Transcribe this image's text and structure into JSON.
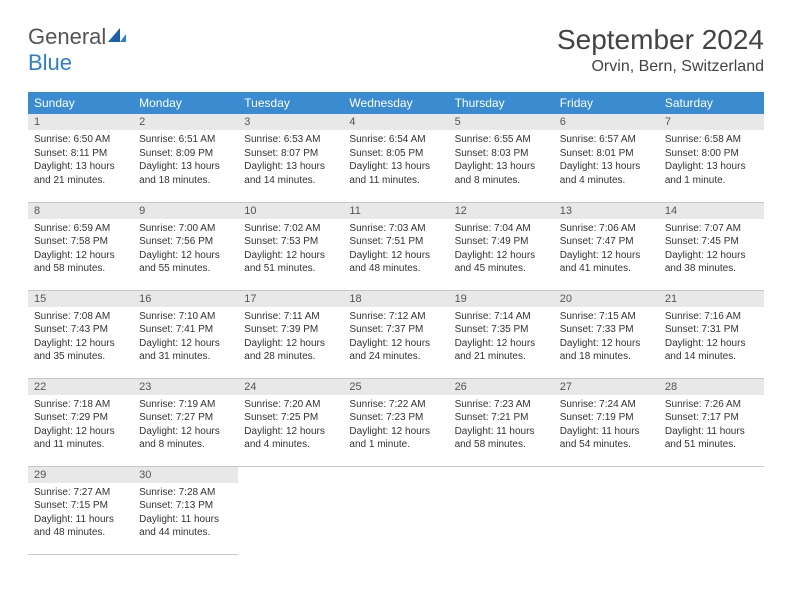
{
  "logo": {
    "text_general": "General",
    "text_blue": "Blue"
  },
  "header": {
    "month_title": "September 2024",
    "location": "Orvin, Bern, Switzerland"
  },
  "colors": {
    "header_bg": "#3a8bd0",
    "header_fg": "#ffffff",
    "daynum_bg": "#e8e8e8",
    "text": "#333333",
    "logo_blue": "#2f7ecb",
    "border": "#c8c8c8"
  },
  "weekdays": [
    "Sunday",
    "Monday",
    "Tuesday",
    "Wednesday",
    "Thursday",
    "Friday",
    "Saturday"
  ],
  "days": [
    {
      "n": "1",
      "sunrise": "Sunrise: 6:50 AM",
      "sunset": "Sunset: 8:11 PM",
      "daylight": "Daylight: 13 hours and 21 minutes."
    },
    {
      "n": "2",
      "sunrise": "Sunrise: 6:51 AM",
      "sunset": "Sunset: 8:09 PM",
      "daylight": "Daylight: 13 hours and 18 minutes."
    },
    {
      "n": "3",
      "sunrise": "Sunrise: 6:53 AM",
      "sunset": "Sunset: 8:07 PM",
      "daylight": "Daylight: 13 hours and 14 minutes."
    },
    {
      "n": "4",
      "sunrise": "Sunrise: 6:54 AM",
      "sunset": "Sunset: 8:05 PM",
      "daylight": "Daylight: 13 hours and 11 minutes."
    },
    {
      "n": "5",
      "sunrise": "Sunrise: 6:55 AM",
      "sunset": "Sunset: 8:03 PM",
      "daylight": "Daylight: 13 hours and 8 minutes."
    },
    {
      "n": "6",
      "sunrise": "Sunrise: 6:57 AM",
      "sunset": "Sunset: 8:01 PM",
      "daylight": "Daylight: 13 hours and 4 minutes."
    },
    {
      "n": "7",
      "sunrise": "Sunrise: 6:58 AM",
      "sunset": "Sunset: 8:00 PM",
      "daylight": "Daylight: 13 hours and 1 minute."
    },
    {
      "n": "8",
      "sunrise": "Sunrise: 6:59 AM",
      "sunset": "Sunset: 7:58 PM",
      "daylight": "Daylight: 12 hours and 58 minutes."
    },
    {
      "n": "9",
      "sunrise": "Sunrise: 7:00 AM",
      "sunset": "Sunset: 7:56 PM",
      "daylight": "Daylight: 12 hours and 55 minutes."
    },
    {
      "n": "10",
      "sunrise": "Sunrise: 7:02 AM",
      "sunset": "Sunset: 7:53 PM",
      "daylight": "Daylight: 12 hours and 51 minutes."
    },
    {
      "n": "11",
      "sunrise": "Sunrise: 7:03 AM",
      "sunset": "Sunset: 7:51 PM",
      "daylight": "Daylight: 12 hours and 48 minutes."
    },
    {
      "n": "12",
      "sunrise": "Sunrise: 7:04 AM",
      "sunset": "Sunset: 7:49 PM",
      "daylight": "Daylight: 12 hours and 45 minutes."
    },
    {
      "n": "13",
      "sunrise": "Sunrise: 7:06 AM",
      "sunset": "Sunset: 7:47 PM",
      "daylight": "Daylight: 12 hours and 41 minutes."
    },
    {
      "n": "14",
      "sunrise": "Sunrise: 7:07 AM",
      "sunset": "Sunset: 7:45 PM",
      "daylight": "Daylight: 12 hours and 38 minutes."
    },
    {
      "n": "15",
      "sunrise": "Sunrise: 7:08 AM",
      "sunset": "Sunset: 7:43 PM",
      "daylight": "Daylight: 12 hours and 35 minutes."
    },
    {
      "n": "16",
      "sunrise": "Sunrise: 7:10 AM",
      "sunset": "Sunset: 7:41 PM",
      "daylight": "Daylight: 12 hours and 31 minutes."
    },
    {
      "n": "17",
      "sunrise": "Sunrise: 7:11 AM",
      "sunset": "Sunset: 7:39 PM",
      "daylight": "Daylight: 12 hours and 28 minutes."
    },
    {
      "n": "18",
      "sunrise": "Sunrise: 7:12 AM",
      "sunset": "Sunset: 7:37 PM",
      "daylight": "Daylight: 12 hours and 24 minutes."
    },
    {
      "n": "19",
      "sunrise": "Sunrise: 7:14 AM",
      "sunset": "Sunset: 7:35 PM",
      "daylight": "Daylight: 12 hours and 21 minutes."
    },
    {
      "n": "20",
      "sunrise": "Sunrise: 7:15 AM",
      "sunset": "Sunset: 7:33 PM",
      "daylight": "Daylight: 12 hours and 18 minutes."
    },
    {
      "n": "21",
      "sunrise": "Sunrise: 7:16 AM",
      "sunset": "Sunset: 7:31 PM",
      "daylight": "Daylight: 12 hours and 14 minutes."
    },
    {
      "n": "22",
      "sunrise": "Sunrise: 7:18 AM",
      "sunset": "Sunset: 7:29 PM",
      "daylight": "Daylight: 12 hours and 11 minutes."
    },
    {
      "n": "23",
      "sunrise": "Sunrise: 7:19 AM",
      "sunset": "Sunset: 7:27 PM",
      "daylight": "Daylight: 12 hours and 8 minutes."
    },
    {
      "n": "24",
      "sunrise": "Sunrise: 7:20 AM",
      "sunset": "Sunset: 7:25 PM",
      "daylight": "Daylight: 12 hours and 4 minutes."
    },
    {
      "n": "25",
      "sunrise": "Sunrise: 7:22 AM",
      "sunset": "Sunset: 7:23 PM",
      "daylight": "Daylight: 12 hours and 1 minute."
    },
    {
      "n": "26",
      "sunrise": "Sunrise: 7:23 AM",
      "sunset": "Sunset: 7:21 PM",
      "daylight": "Daylight: 11 hours and 58 minutes."
    },
    {
      "n": "27",
      "sunrise": "Sunrise: 7:24 AM",
      "sunset": "Sunset: 7:19 PM",
      "daylight": "Daylight: 11 hours and 54 minutes."
    },
    {
      "n": "28",
      "sunrise": "Sunrise: 7:26 AM",
      "sunset": "Sunset: 7:17 PM",
      "daylight": "Daylight: 11 hours and 51 minutes."
    },
    {
      "n": "29",
      "sunrise": "Sunrise: 7:27 AM",
      "sunset": "Sunset: 7:15 PM",
      "daylight": "Daylight: 11 hours and 48 minutes."
    },
    {
      "n": "30",
      "sunrise": "Sunrise: 7:28 AM",
      "sunset": "Sunset: 7:13 PM",
      "daylight": "Daylight: 11 hours and 44 minutes."
    }
  ],
  "layout": {
    "first_weekday_index": 0,
    "trailing_empty": 5,
    "fontsize_header": 28,
    "fontsize_location": 16,
    "fontsize_weekday": 12,
    "fontsize_daynum": 11,
    "fontsize_body": 10
  }
}
